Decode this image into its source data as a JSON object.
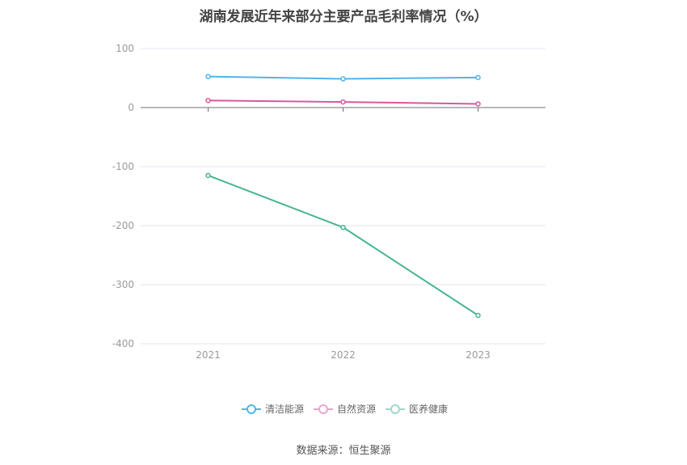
{
  "chart_data": {
    "type": "line",
    "title": "湖南发展近年来部分主要产品毛利率情况（%）",
    "categories": [
      "2021",
      "2022",
      "2023"
    ],
    "series": [
      {
        "name": "清洁能源",
        "values": [
          52.5,
          48.6,
          50.9
        ],
        "color": "#4fb5ec"
      },
      {
        "name": "自然资源",
        "values": [
          12.0,
          9.5,
          6.2
        ],
        "color": "#d9579f"
      },
      {
        "name": "医养健康",
        "values": [
          -115.0,
          -203.0,
          -352.0
        ],
        "color": "#46b592"
      }
    ],
    "ylim": [
      -400,
      100
    ],
    "yticks": [
      100,
      0,
      -100,
      -200,
      -300,
      -400
    ],
    "grid": true,
    "legend": "bottom-center",
    "xlabel": "",
    "ylabel": ""
  },
  "source": "数据来源：恒生聚源"
}
